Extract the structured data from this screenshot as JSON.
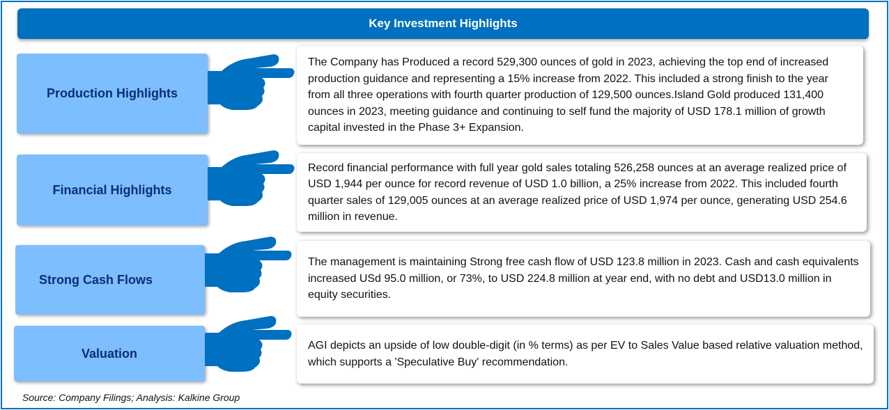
{
  "title": "Key Investment Highlights",
  "rows": [
    {
      "label": "Production Highlights",
      "text": "The Company has Produced a record 529,300 ounces of gold in 2023, achieving the top end of increased production guidance and representing a 15% increase from 2022. This included a strong finish to the year from all three operations with fourth quarter production of 129,500 ounces.Island Gold produced 131,400 ounces in 2023, meeting guidance and continuing to self fund the majority of USD 178.1 million of growth capital invested in the Phase 3+ Expansion."
    },
    {
      "label": "Financial Highlights",
      "text": "Record financial performance with full year gold sales totaling 526,258 ounces at an average realized price of USD 1,944 per ounce for record revenue of USD 1.0 billion, a 25% increase from 2022. This included fourth quarter sales of 129,005 ounces at an average realized price of USD 1,974 per ounce, generating USD 254.6 million in revenue."
    },
    {
      "label": "Strong Cash Flows",
      "text": "The management is maintaining Strong free cash flow  of USD 123.8 million in 2023. Cash and cash equivalents increased USd 95.0 million, or 73%, to USD 224.8 million at year end, with no debt and USD13.0 million in equity securities."
    },
    {
      "label": "Valuation",
      "text": "AGI depicts an upside of low double-digit (in % terms) as per EV to Sales Value based relative valuation method, which supports a 'Speculative Buy' recommendation."
    }
  ],
  "source": "Source: Company Filings; Analysis: Kalkine Group",
  "colors": {
    "accent": "#0070C0",
    "label_bg": "#7DBEFF",
    "label_text": "#0B2C7A"
  }
}
